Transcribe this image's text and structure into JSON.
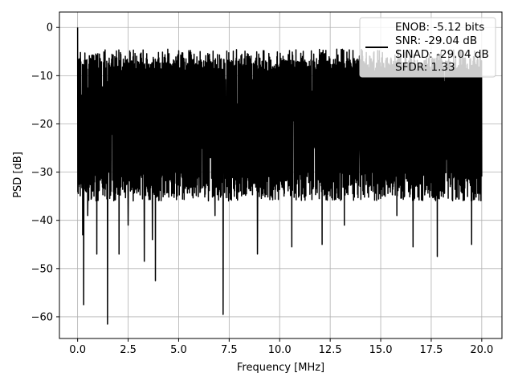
{
  "chart_data": {
    "type": "line",
    "title": "",
    "xlabel": "Frequency [MHz]",
    "ylabel": "PSD [dB]",
    "xlim": [
      -0.9,
      21.0
    ],
    "ylim": [
      -64.5,
      3.2
    ],
    "x_ticks": [
      0.0,
      2.5,
      5.0,
      7.5,
      10.0,
      12.5,
      15.0,
      17.5,
      20.0
    ],
    "x_tick_labels": [
      "0.0",
      "2.5",
      "5.0",
      "7.5",
      "10.0",
      "12.5",
      "15.0",
      "17.5",
      "20.0"
    ],
    "y_ticks": [
      0,
      -10,
      -20,
      -30,
      -40,
      -50,
      -60
    ],
    "y_tick_labels": [
      "0",
      "−10",
      "−20",
      "−30",
      "−40",
      "−50",
      "−60"
    ],
    "grid": true,
    "legend_position": "top-right",
    "series": [
      {
        "name": "ENOB: -5.12 bits\nSNR: -29.04 dB\nSINAD: -29.04 dB\nSFDR: 1.33",
        "color": "#000000",
        "x_range": [
          0.0,
          20.0
        ],
        "points": 2000,
        "baseline_db": -19.5,
        "upper_envelope_db": [
          -4.5,
          -9
        ],
        "lower_envelope_db": [
          -30,
          -36
        ],
        "peak": {
          "x": 0.0,
          "y": 0.0
        },
        "dips": [
          {
            "x": 0.25,
            "y": -43
          },
          {
            "x": 0.3,
            "y": -57.5
          },
          {
            "x": 0.5,
            "y": -39
          },
          {
            "x": 0.95,
            "y": -47
          },
          {
            "x": 1.48,
            "y": -61.5
          },
          {
            "x": 2.05,
            "y": -47
          },
          {
            "x": 2.5,
            "y": -41
          },
          {
            "x": 3.3,
            "y": -48.5
          },
          {
            "x": 3.85,
            "y": -52.5
          },
          {
            "x": 3.7,
            "y": -44
          },
          {
            "x": 7.2,
            "y": -59.5
          },
          {
            "x": 8.9,
            "y": -47
          },
          {
            "x": 10.6,
            "y": -45.5
          },
          {
            "x": 12.1,
            "y": -45
          },
          {
            "x": 16.6,
            "y": -45.5
          },
          {
            "x": 17.8,
            "y": -47.5
          },
          {
            "x": 19.5,
            "y": -45
          },
          {
            "x": 6.8,
            "y": -39
          },
          {
            "x": 13.2,
            "y": -41
          },
          {
            "x": 15.8,
            "y": -39
          }
        ]
      }
    ],
    "legend_lines": [
      "ENOB: -5.12 bits",
      "SNR: -29.04 dB",
      "SINAD: -29.04 dB",
      "SFDR: 1.33"
    ]
  }
}
